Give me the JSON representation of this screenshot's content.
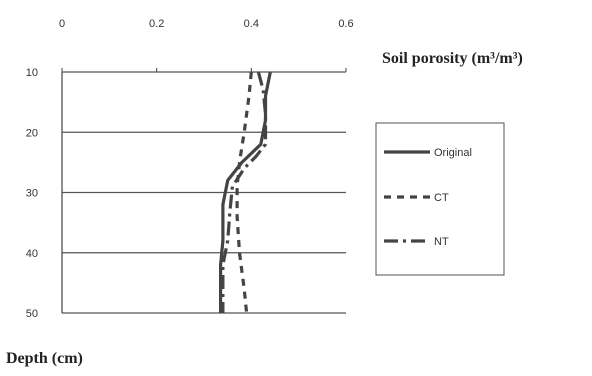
{
  "chart_data": {
    "type": "line",
    "title": "",
    "xlabel": "Soil porosity (m³/m³)",
    "ylabel": "Depth (cm)",
    "xlim": [
      0,
      0.6
    ],
    "ylim": [
      10,
      50
    ],
    "x_axis_position": "top",
    "y_axis_inverted": true,
    "x_ticks": [
      0,
      0.2,
      0.4,
      0.6
    ],
    "x_tick_labels": [
      "0",
      "0.2",
      "0.4",
      "0.6"
    ],
    "y_ticks": [
      10,
      20,
      30,
      40,
      50
    ],
    "y_tick_labels": [
      "10",
      "20",
      "30",
      "40",
      "50"
    ],
    "grid": "horizontal",
    "legend_placement": "right",
    "series": [
      {
        "name": "Original",
        "style": "solid",
        "color": "#444444",
        "points": [
          [
            0.44,
            10
          ],
          [
            0.43,
            14
          ],
          [
            0.43,
            18
          ],
          [
            0.42,
            22
          ],
          [
            0.38,
            25
          ],
          [
            0.35,
            28
          ],
          [
            0.34,
            32
          ],
          [
            0.34,
            38
          ],
          [
            0.335,
            42
          ],
          [
            0.335,
            46
          ],
          [
            0.335,
            50
          ]
        ]
      },
      {
        "name": "CT",
        "style": "dashed",
        "color": "#444444",
        "points": [
          [
            0.4,
            10
          ],
          [
            0.395,
            14
          ],
          [
            0.39,
            17
          ],
          [
            0.385,
            20
          ],
          [
            0.375,
            25
          ],
          [
            0.37,
            29
          ],
          [
            0.37,
            34
          ],
          [
            0.375,
            40
          ],
          [
            0.385,
            46
          ],
          [
            0.39,
            50
          ]
        ]
      },
      {
        "name": "NT",
        "style": "dashdot",
        "color": "#444444",
        "points": [
          [
            0.415,
            10
          ],
          [
            0.425,
            13
          ],
          [
            0.43,
            17
          ],
          [
            0.43,
            22
          ],
          [
            0.41,
            24
          ],
          [
            0.385,
            26
          ],
          [
            0.36,
            29
          ],
          [
            0.355,
            33
          ],
          [
            0.35,
            38
          ],
          [
            0.34,
            42
          ],
          [
            0.34,
            46
          ],
          [
            0.34,
            50
          ]
        ]
      }
    ]
  },
  "colors": {
    "background": "#ffffff",
    "axis": "#444444",
    "grid": "#555555",
    "legend_border": "#555555"
  }
}
